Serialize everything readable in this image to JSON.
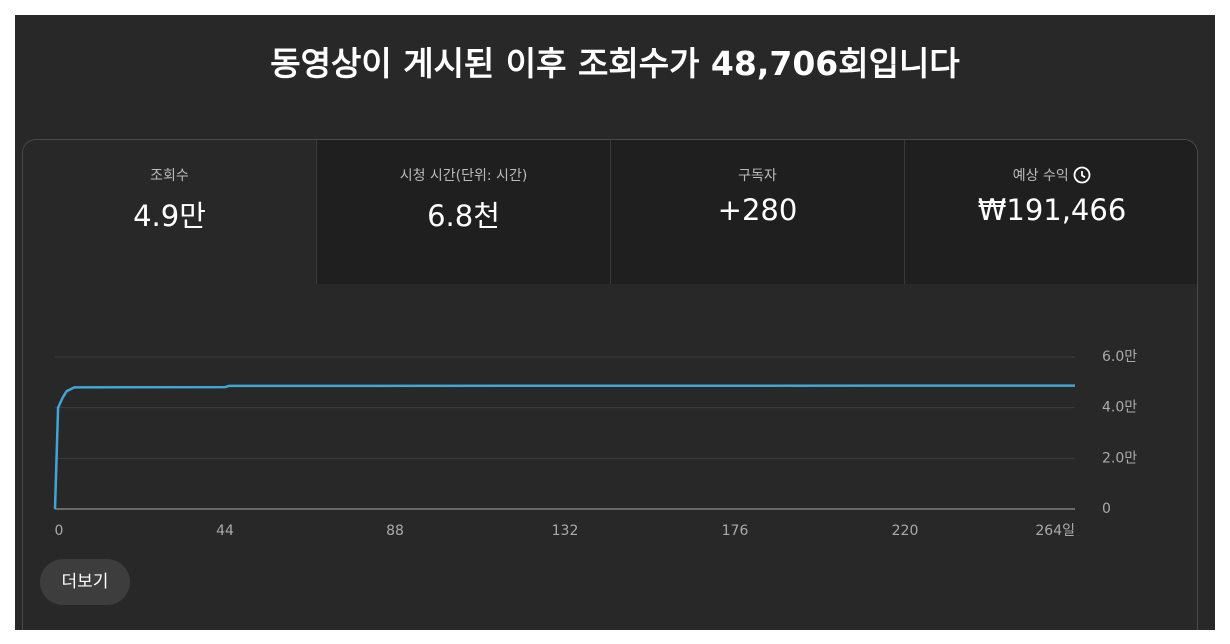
{
  "header": {
    "title_prefix": "동영상이 게시된 이후 조회수가 ",
    "title_highlight": "48,706",
    "title_suffix": "회입니다"
  },
  "metrics": [
    {
      "label": "조회수",
      "value": "4.9만"
    },
    {
      "label": "시청 시간(단위: 시간)",
      "value": "6.8천"
    },
    {
      "label": "구독자",
      "value": "+280"
    },
    {
      "label": "예상 수익",
      "value": "₩191,466"
    }
  ],
  "chart_data": {
    "type": "line",
    "x": [
      0,
      0.3,
      0.8,
      2,
      3,
      5,
      44,
      45,
      264
    ],
    "series": [
      {
        "color": "#41a6d6",
        "values": [
          0,
          15000,
          40000,
          44000,
          46500,
          48000,
          48100,
          48600,
          48706
        ]
      }
    ],
    "xlim": [
      0,
      264
    ],
    "xticks": [
      0,
      44,
      88,
      132,
      176,
      220,
      {
        "value": 264,
        "label": "264일"
      }
    ],
    "ylim": [
      0,
      60000
    ],
    "yticks": [
      0,
      {
        "value": 20000,
        "label": "2.0만"
      },
      {
        "value": 40000,
        "label": "4.0만"
      },
      {
        "value": 60000,
        "label": "6.0만"
      }
    ],
    "grid": true
  },
  "more_button": "더보기"
}
